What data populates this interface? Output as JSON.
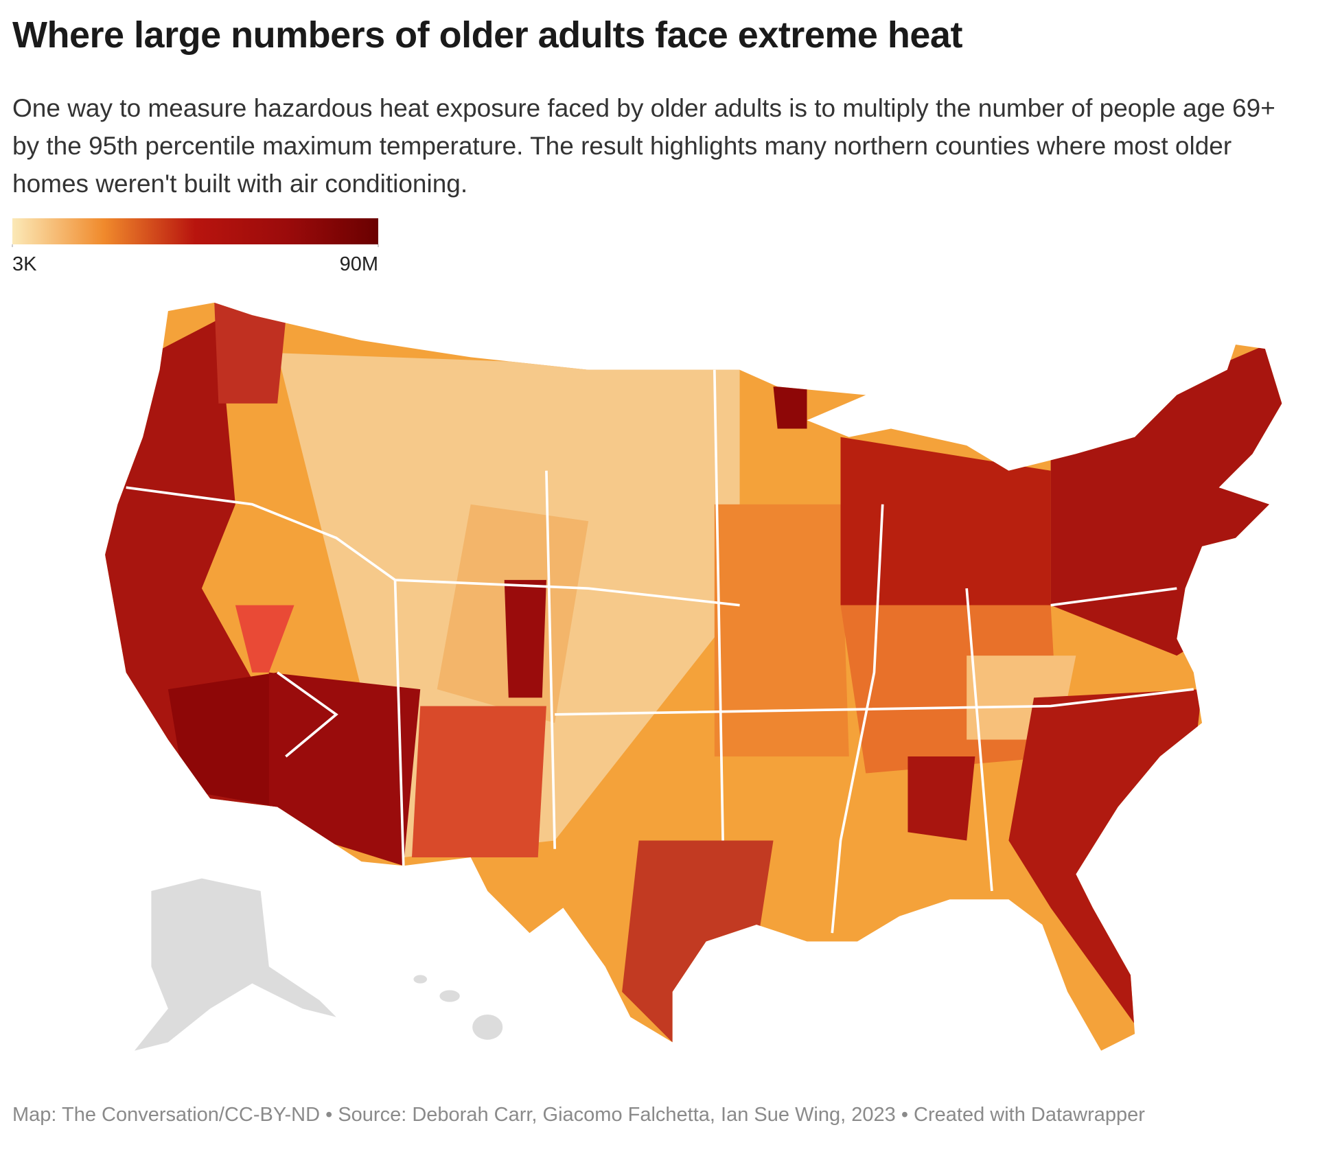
{
  "header": {
    "title": "Where large numbers of older adults face extreme heat",
    "subtitle": "One way to measure hazardous heat exposure faced by older adults is to multiply the number of people age 69+ by the 95th percentile maximum temperature. The result highlights many northern counties where most older homes weren't built with air conditioning."
  },
  "legend": {
    "colors": [
      "#fbe9b7",
      "#f08a2c",
      "#b8140e",
      "#9b0b0b",
      "#6a0000"
    ],
    "ticks": [
      {
        "value": 3000,
        "label": "3K"
      },
      {
        "value": 90000000,
        "label": "90M"
      }
    ]
  },
  "footer": {
    "text": "Map: The Conversation/CC-BY-ND • Source: Deborah Carr, Giacomo Falchetta, Ian Sue Wing, 2023 • Created with Datawrapper"
  }
}
